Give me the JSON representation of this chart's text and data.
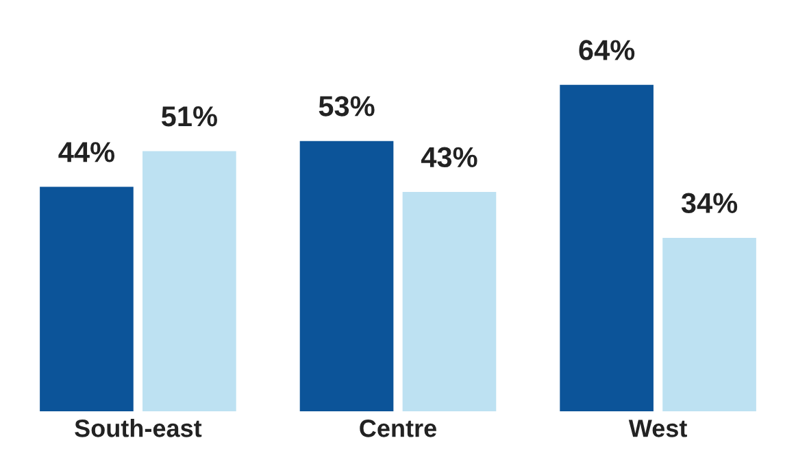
{
  "chart_data": {
    "type": "bar",
    "categories": [
      "South-east",
      "Centre",
      "West"
    ],
    "series": [
      {
        "color": "#0c5499",
        "values": [
          44,
          53,
          64
        ],
        "value_labels": [
          "44%",
          "53%",
          "64%"
        ]
      },
      {
        "color": "#bde1f2",
        "values": [
          51,
          43,
          34
        ],
        "value_labels": [
          "51%",
          "43%",
          "34%"
        ]
      }
    ],
    "grid": false
  }
}
